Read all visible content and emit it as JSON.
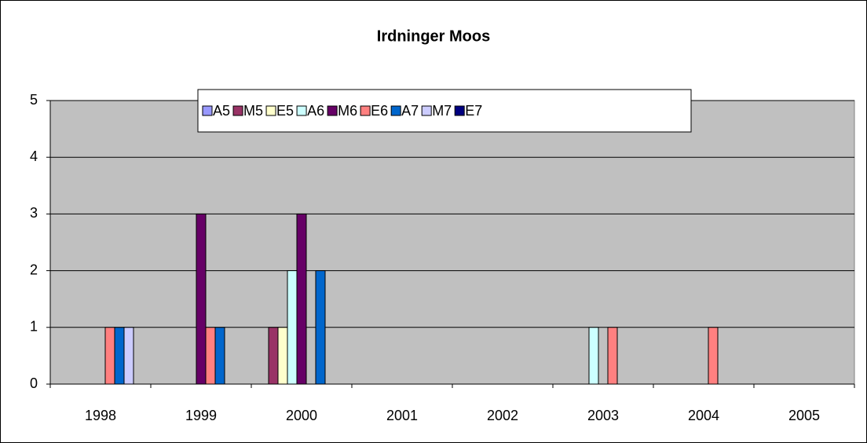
{
  "chart_data": {
    "type": "bar",
    "title": "Irdninger Moos",
    "categories": [
      "1998",
      "1999",
      "2000",
      "2001",
      "2002",
      "2003",
      "2004",
      "2005"
    ],
    "series": [
      {
        "name": "A5",
        "color": "#9999ff",
        "values": [
          0,
          0,
          0,
          0,
          0,
          0,
          0,
          0
        ]
      },
      {
        "name": "M5",
        "color": "#993366",
        "values": [
          0,
          0,
          1,
          0,
          0,
          0,
          0,
          0
        ]
      },
      {
        "name": "E5",
        "color": "#ffffcc",
        "values": [
          0,
          0,
          1,
          0,
          0,
          0,
          0,
          0
        ]
      },
      {
        "name": "A6",
        "color": "#ccffff",
        "values": [
          0,
          0,
          2,
          0,
          0,
          1,
          0,
          0
        ]
      },
      {
        "name": "M6",
        "color": "#660066",
        "values": [
          0,
          3,
          3,
          0,
          0,
          0,
          0,
          0
        ]
      },
      {
        "name": "E6",
        "color": "#ff8080",
        "values": [
          1,
          1,
          0,
          0,
          0,
          1,
          1,
          0
        ]
      },
      {
        "name": "A7",
        "color": "#0066cc",
        "values": [
          1,
          1,
          2,
          0,
          0,
          0,
          0,
          0
        ]
      },
      {
        "name": "M7",
        "color": "#ccccff",
        "values": [
          1,
          0,
          0,
          0,
          0,
          0,
          0,
          0
        ]
      },
      {
        "name": "E7",
        "color": "#000080",
        "values": [
          0,
          0,
          0,
          0,
          0,
          0,
          0,
          0
        ]
      }
    ],
    "ylim": [
      0,
      5
    ],
    "yticks": [
      0,
      1,
      2,
      3,
      4,
      5
    ],
    "grid": true
  }
}
